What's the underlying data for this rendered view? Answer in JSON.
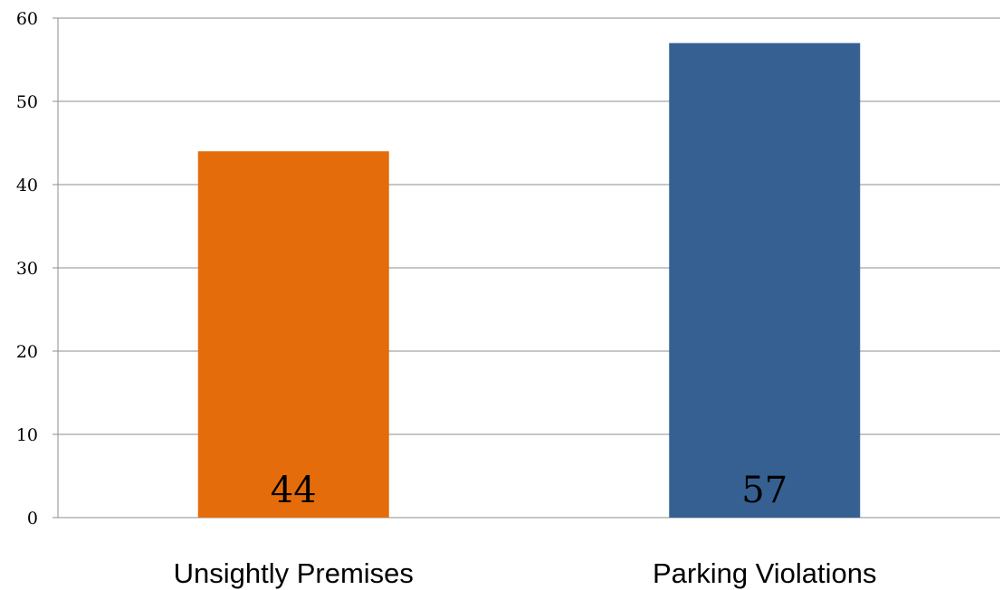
{
  "chart_data": {
    "type": "bar",
    "categories": [
      "Unsightly Premises",
      "Parking Violations"
    ],
    "values": [
      44,
      57
    ],
    "data_labels": [
      "44",
      "57"
    ],
    "colors": [
      "#E46C0A",
      "#376092"
    ],
    "ylim": [
      0,
      60
    ],
    "y_ticks": [
      "0",
      "10",
      "20",
      "30",
      "40",
      "50",
      "60"
    ],
    "grid": true,
    "legend": "none"
  }
}
